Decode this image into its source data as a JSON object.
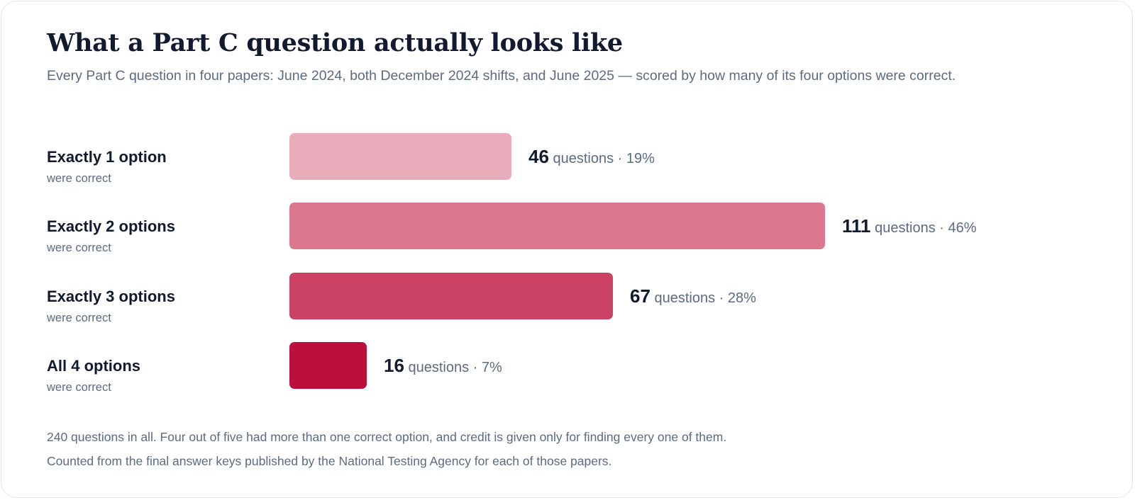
{
  "title": "What a Part C question actually looks like",
  "subtitle": "Every Part C question in four papers: June 2024, both December 2024 shifts, and June 2025 — scored by how many of its four options were correct.",
  "chart_data": {
    "type": "bar",
    "orientation": "horizontal",
    "categories": [
      "Exactly 1 option",
      "Exactly 2 options",
      "Exactly 3 options",
      "All 4 options"
    ],
    "category_sublabel": "were correct",
    "values": [
      46,
      111,
      67,
      16
    ],
    "value_unit": "questions",
    "percent_labels": [
      "19%",
      "46%",
      "28%",
      "7%"
    ],
    "colors": [
      "#e9acba",
      "#db778f",
      "#cc4264",
      "#bd0f3b"
    ],
    "separator": "·",
    "grid": false,
    "legend": "none"
  },
  "notes": [
    "240 questions in all. Four out of five had more than one correct option, and credit is given only for finding every one of them.",
    "Counted from the final answer keys published by the National Testing Agency for each of those papers."
  ]
}
